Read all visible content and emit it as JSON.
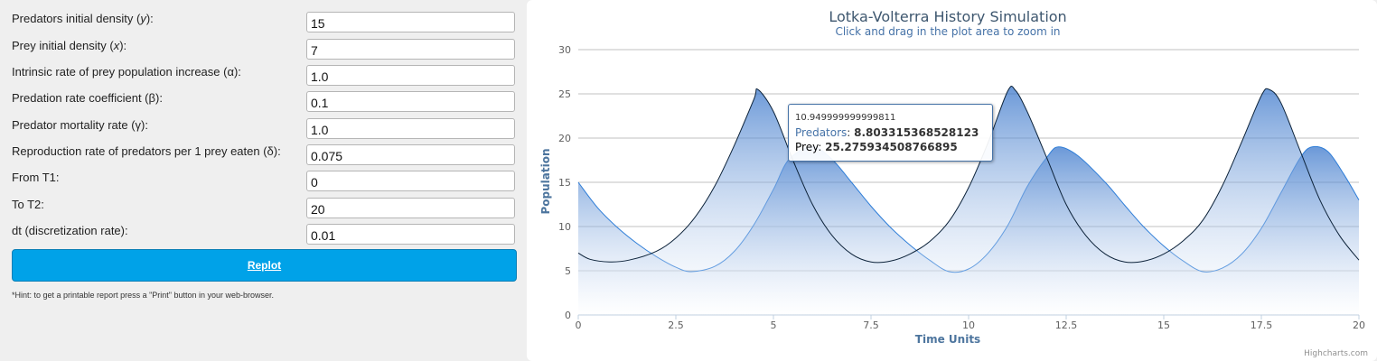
{
  "form": {
    "fields": [
      {
        "label_parts": [
          "Predators initial density (",
          "y",
          "):"
        ],
        "value": "15"
      },
      {
        "label_parts": [
          "Prey initial density (",
          "x",
          "):"
        ],
        "value": "7"
      },
      {
        "label_parts": [
          "Intrinsic rate of prey population increase (α):",
          "",
          ""
        ],
        "value": "1.0"
      },
      {
        "label_parts": [
          "Predation rate coefficient (β):",
          "",
          ""
        ],
        "value": "0.1"
      },
      {
        "label_parts": [
          "Predator mortality rate (γ):",
          "",
          ""
        ],
        "value": "1.0"
      },
      {
        "label_parts": [
          "Reproduction rate of predators per 1 prey eaten (δ):",
          "",
          ""
        ],
        "value": "0.075"
      },
      {
        "label_parts": [
          "From T1:",
          "",
          ""
        ],
        "value": "0"
      },
      {
        "label_parts": [
          "To T2:",
          "",
          ""
        ],
        "value": "20"
      },
      {
        "label_parts": [
          "dt (discretization rate):",
          "",
          ""
        ],
        "value": "0.01"
      }
    ],
    "replot_label": "Replot",
    "hint": "*Hint: to get a printable report press a \"Print\" button in your web-browser."
  },
  "chart_data": {
    "type": "area",
    "title": "Lotka-Volterra History Simulation",
    "subtitle": "Click and drag in the plot area to zoom in",
    "xlabel": "Time Units",
    "ylabel": "Population",
    "xlim": [
      0,
      20
    ],
    "ylim": [
      0,
      30
    ],
    "xticks": [
      "0",
      "2.5",
      "5",
      "7.5",
      "10",
      "12.5",
      "15",
      "17.5",
      "20"
    ],
    "yticks": [
      "0",
      "5",
      "10",
      "15",
      "20",
      "25",
      "30"
    ],
    "grid": "horizontal",
    "series": [
      {
        "name": "Predators",
        "color": "#4572a7",
        "stroke": "#2f7ed8",
        "points": [
          [
            0,
            15
          ],
          [
            0.5,
            12.1
          ],
          [
            1,
            9.9
          ],
          [
            1.5,
            8.1
          ],
          [
            2,
            6.6
          ],
          [
            2.5,
            5.4
          ],
          [
            2.9,
            4.9
          ],
          [
            3.5,
            5.5
          ],
          [
            4,
            7.2
          ],
          [
            4.5,
            10.2
          ],
          [
            5,
            14.2
          ],
          [
            5.4,
            17.6
          ],
          [
            6,
            19
          ],
          [
            6.5,
            17.6
          ],
          [
            7,
            15
          ],
          [
            7.5,
            12.3
          ],
          [
            8,
            9.9
          ],
          [
            8.5,
            7.9
          ],
          [
            9,
            6.2
          ],
          [
            9.5,
            4.9
          ],
          [
            10,
            5.2
          ],
          [
            10.5,
            7
          ],
          [
            11,
            10.1
          ],
          [
            11.5,
            14.5
          ],
          [
            12,
            17.8
          ],
          [
            12.3,
            19
          ],
          [
            12.8,
            18
          ],
          [
            13.5,
            15
          ],
          [
            14,
            12.4
          ],
          [
            14.5,
            9.9
          ],
          [
            15,
            7.8
          ],
          [
            15.5,
            6.1
          ],
          [
            16,
            4.9
          ],
          [
            16.5,
            5.3
          ],
          [
            17,
            6.9
          ],
          [
            17.5,
            9.8
          ],
          [
            18,
            13.8
          ],
          [
            18.5,
            17.8
          ],
          [
            18.8,
            19
          ],
          [
            19.2,
            18.5
          ],
          [
            19.6,
            16
          ],
          [
            20,
            13
          ]
        ]
      },
      {
        "name": "Prey",
        "color": "#000000",
        "stroke": "#0d233a",
        "points": [
          [
            0,
            7
          ],
          [
            0.3,
            6.3
          ],
          [
            0.8,
            6
          ],
          [
            1.3,
            6.2
          ],
          [
            2,
            7.2
          ],
          [
            2.5,
            8.7
          ],
          [
            3,
            11.1
          ],
          [
            3.5,
            14.6
          ],
          [
            4,
            19.2
          ],
          [
            4.5,
            24.4
          ],
          [
            4.6,
            25.5
          ],
          [
            5,
            23
          ],
          [
            5.5,
            17.5
          ],
          [
            6,
            12.5
          ],
          [
            6.5,
            9
          ],
          [
            7,
            6.9
          ],
          [
            7.5,
            6
          ],
          [
            8,
            6.1
          ],
          [
            8.5,
            6.9
          ],
          [
            9,
            8.3
          ],
          [
            9.5,
            10.6
          ],
          [
            10,
            14.4
          ],
          [
            10.5,
            19.5
          ],
          [
            11,
            25.3
          ],
          [
            11.2,
            25.4
          ],
          [
            11.5,
            23
          ],
          [
            12,
            17.8
          ],
          [
            12.5,
            12.5
          ],
          [
            13,
            9
          ],
          [
            13.5,
            6.9
          ],
          [
            14,
            6
          ],
          [
            14.5,
            6.1
          ],
          [
            15,
            6.9
          ],
          [
            15.5,
            8.4
          ],
          [
            16,
            10.7
          ],
          [
            16.5,
            14.6
          ],
          [
            17,
            19.6
          ],
          [
            17.5,
            24.8
          ],
          [
            17.7,
            25.5
          ],
          [
            18,
            24
          ],
          [
            18.5,
            18.5
          ],
          [
            19,
            13
          ],
          [
            19.5,
            9
          ],
          [
            20,
            6.2
          ]
        ]
      }
    ],
    "tooltip": {
      "x": "10.949999999999811",
      "rows": [
        {
          "name": "Predators",
          "value": "8.803315368528123"
        },
        {
          "name": "Prey",
          "value": "25.275934508766895"
        }
      ]
    },
    "credits": "Highcharts.com"
  }
}
